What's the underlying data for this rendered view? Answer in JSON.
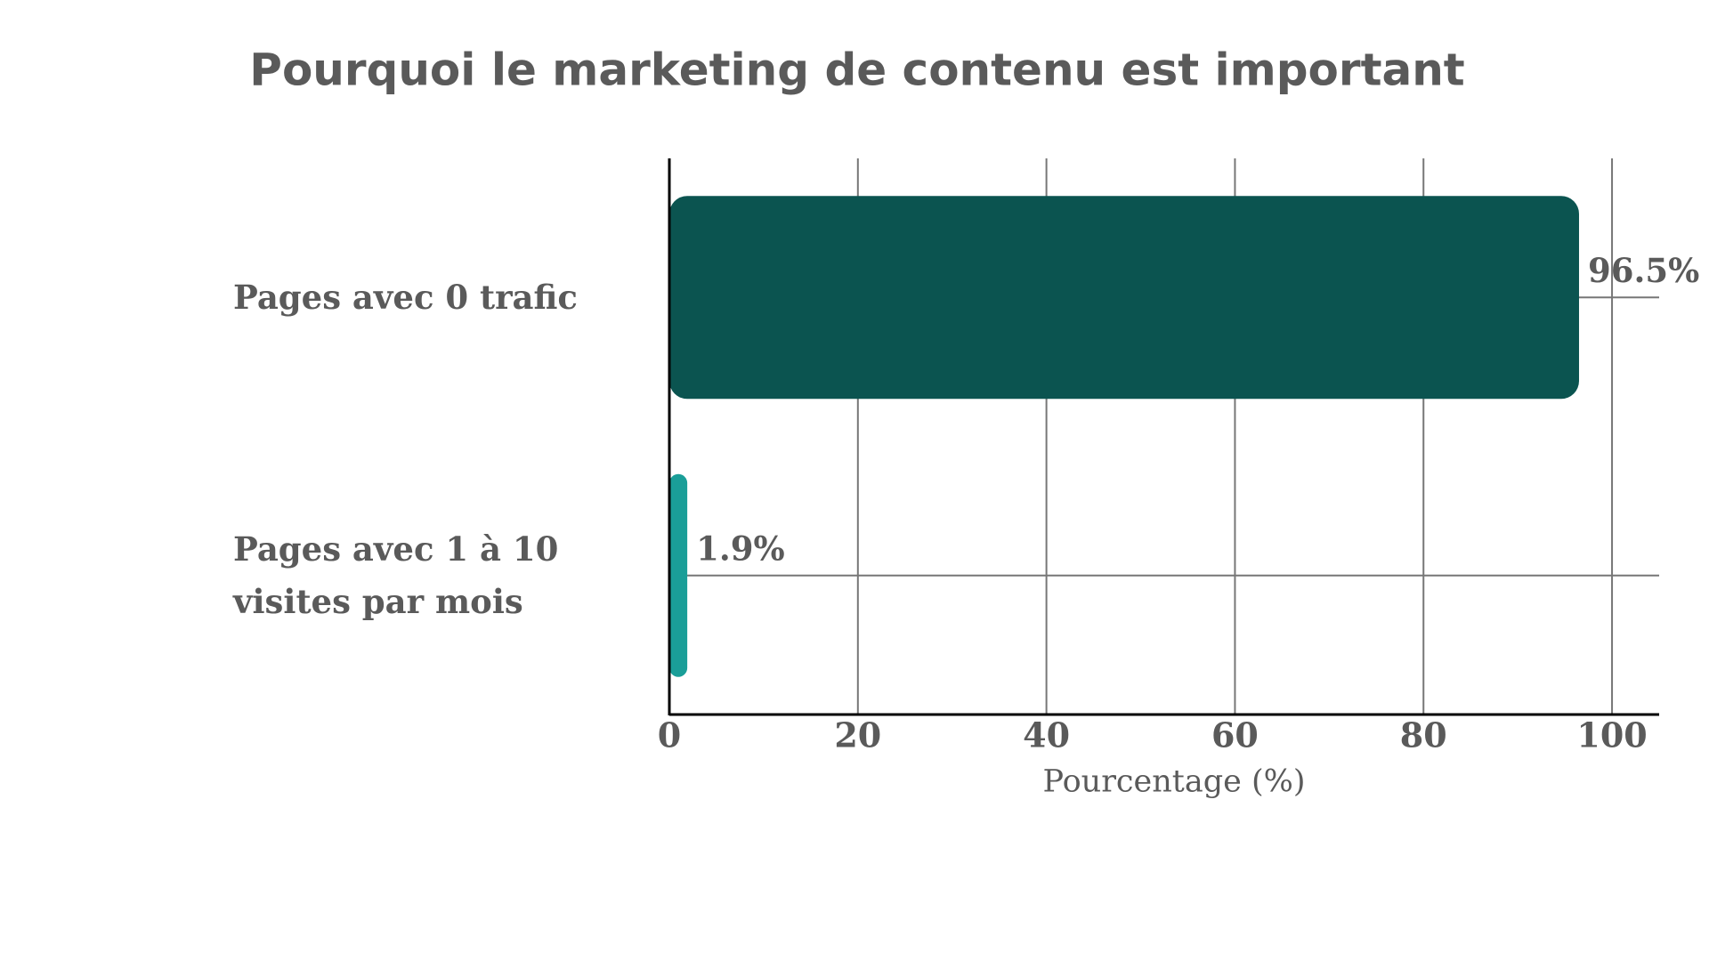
{
  "chart_data": {
    "type": "barh",
    "title": "Pourquoi le marketing de contenu est important",
    "categories": [
      "Pages avec 0 trafic",
      "Pages avec 1 à 10 visites par mois"
    ],
    "values": [
      96.5,
      1.9
    ],
    "value_labels": [
      "96.5%",
      "1.9%"
    ],
    "colors": [
      "#0b5450",
      "#1a9e98"
    ],
    "xlabel": "Pourcentage (%)",
    "xlim": [
      0,
      105
    ],
    "xticks": [
      0,
      20,
      40,
      60,
      80,
      100
    ],
    "grid": true
  }
}
